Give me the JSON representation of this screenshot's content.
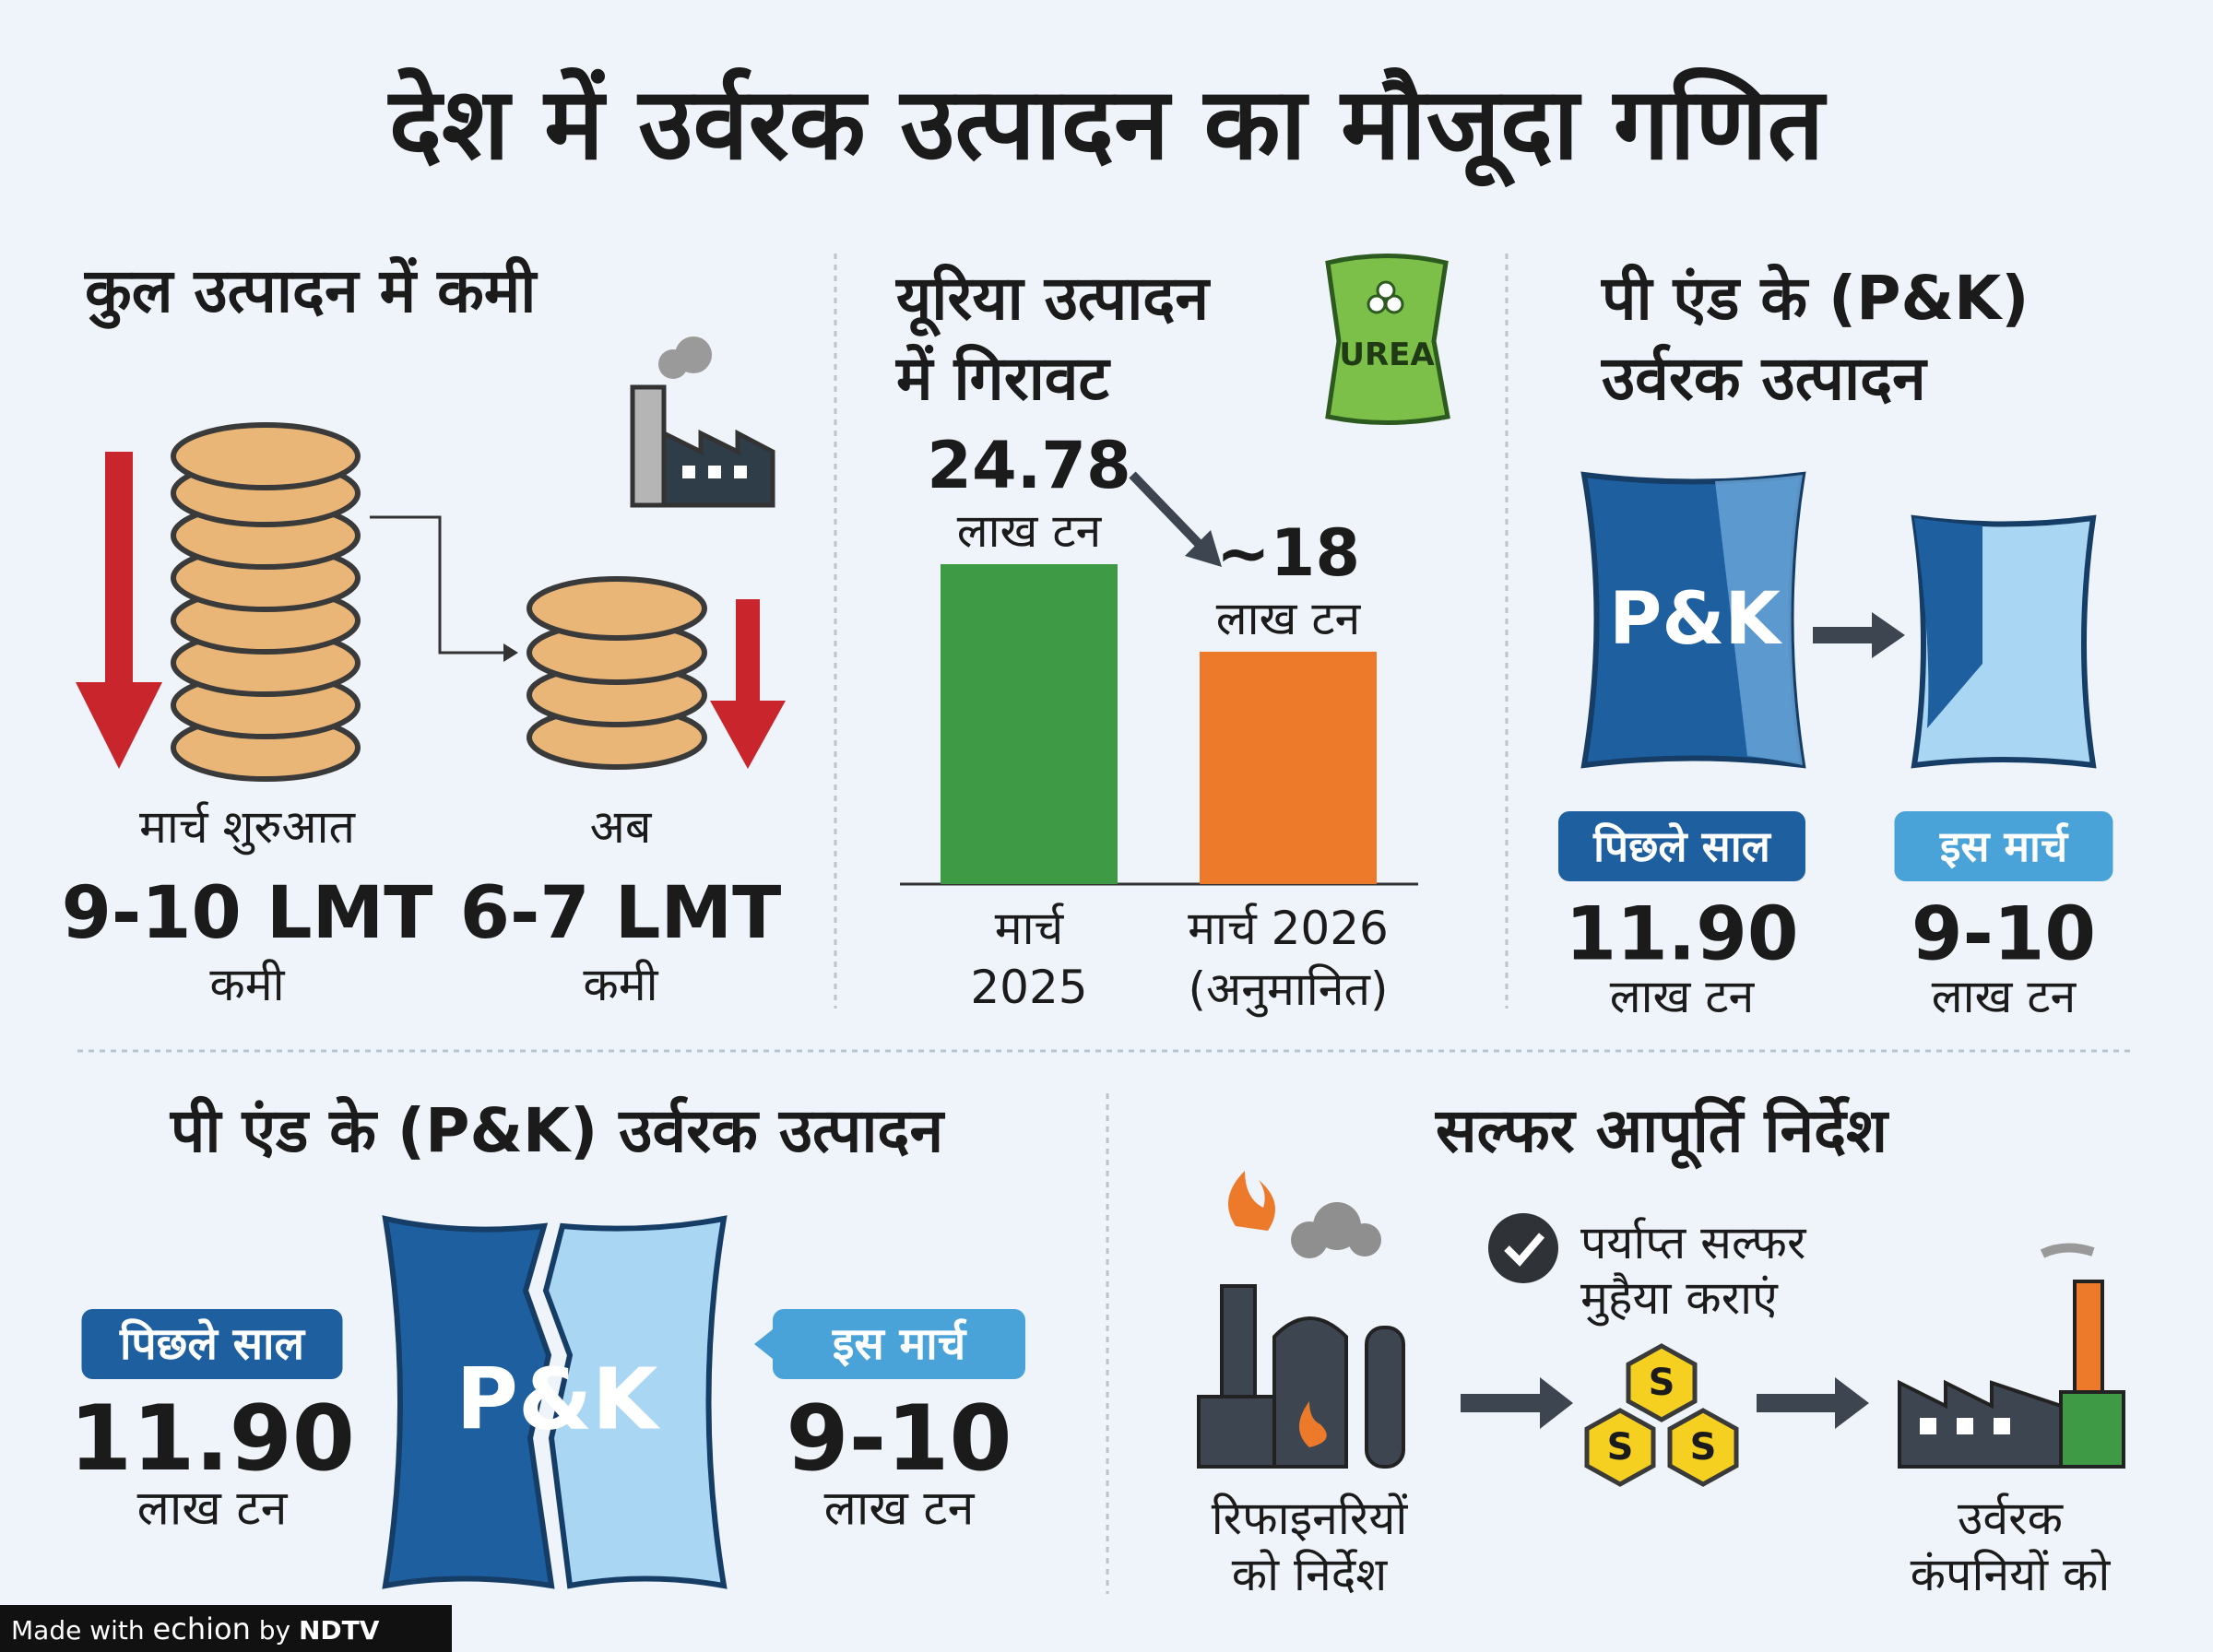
{
  "title": "देश में उर्वरक उत्पादन का मौजूदा गणित",
  "total_panel": {
    "heading": "कुल उत्पादन में कमी",
    "items": [
      {
        "label": "मार्च शुरुआत",
        "value": "9-10 LMT",
        "note": "कमी"
      },
      {
        "label": "अब",
        "value": "6-7 LMT",
        "note": "कमी"
      }
    ]
  },
  "urea_panel": {
    "heading_lines": [
      "यूरिया उत्पादन",
      "में गिरावट"
    ],
    "bag_label": "UREA",
    "chart": {
      "type": "bar",
      "categories": [
        [
          "मार्च",
          "2025"
        ],
        [
          "मार्च 2026",
          "(अनुमानित)"
        ]
      ],
      "values": [
        24.78,
        18
      ],
      "value_labels": [
        "24.78",
        "~18"
      ],
      "units": [
        "लाख टन",
        "लाख टन"
      ],
      "colors": [
        "#3f9a45",
        "#ec7a2a"
      ]
    }
  },
  "pk_panel": {
    "heading_lines": [
      "पी एंड के (P&K)",
      "उर्वरक उत्पादन"
    ],
    "bag_label": "P&K",
    "items": [
      {
        "label": "पिछले साल",
        "value": "11.90",
        "unit": "लाख टन"
      },
      {
        "label": "इस मार्च",
        "value": "9-10",
        "unit": "लाख टन"
      }
    ]
  },
  "pk_bottom": {
    "heading": "पी एंड के (P&K) उर्वरक उत्पादन",
    "bag_label": "P&K",
    "items": [
      {
        "label": "पिछले साल",
        "value": "11.90",
        "unit": "लाख टन"
      },
      {
        "label": "इस मार्च",
        "value": "9-10",
        "unit": "लाख टन"
      }
    ]
  },
  "sulfur_panel": {
    "heading": "सल्फर आपूर्ति निर्देश",
    "steps": [
      {
        "lines": [
          "रिफाइनरियों",
          "को निर्देश"
        ]
      },
      {
        "lines": [
          "पर्याप्त सल्फर",
          "मुहैया कराएं"
        ],
        "icon_text": [
          "S",
          "S",
          "S"
        ]
      },
      {
        "lines": [
          "उर्वरक",
          "कंपनियों को"
        ]
      }
    ]
  },
  "footer": {
    "made_with": "Made with",
    "brand": "echion",
    "by": "by",
    "partner": "NDTV"
  }
}
